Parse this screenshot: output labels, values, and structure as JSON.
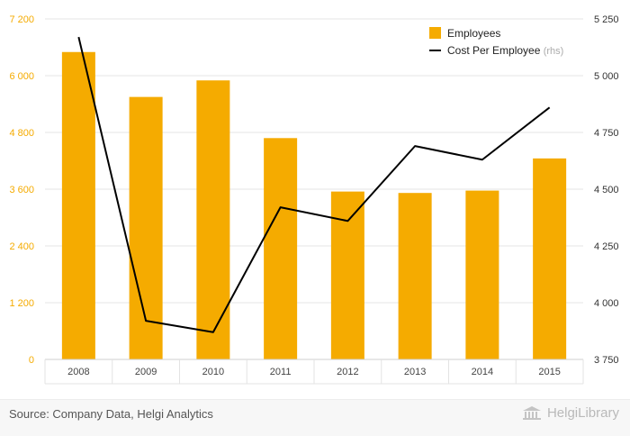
{
  "chart_data": {
    "type": "bar+line",
    "categories": [
      "2008",
      "2009",
      "2010",
      "2011",
      "2012",
      "2013",
      "2014",
      "2015"
    ],
    "series": [
      {
        "name": "Employees",
        "type": "bar",
        "axis": "left",
        "color": "#f5ab00",
        "values": [
          6500,
          5550,
          5900,
          4680,
          3550,
          3520,
          3570,
          4250
        ]
      },
      {
        "name": "Cost Per Employee",
        "name_suffix": "(rhs)",
        "type": "line",
        "axis": "right",
        "color": "#000000",
        "values": [
          5170,
          3920,
          3870,
          4420,
          4360,
          4690,
          4630,
          4860
        ]
      }
    ],
    "left_axis": {
      "ticks": [
        0,
        1200,
        2400,
        3600,
        4800,
        6000,
        7200
      ],
      "tick_labels": [
        "0",
        "1 200",
        "2 400",
        "3 600",
        "4 800",
        "6 000",
        "7 200"
      ],
      "ylim": [
        0,
        7200
      ]
    },
    "right_axis": {
      "ticks": [
        3750,
        4000,
        4250,
        4500,
        4750,
        5000,
        5250
      ],
      "tick_labels": [
        "3 750",
        "4 000",
        "4 250",
        "4 500",
        "4 750",
        "5 000",
        "5 250"
      ],
      "ylim": [
        3750,
        5250
      ]
    },
    "grid": true,
    "legend_position": "top-right"
  },
  "footer": {
    "source": "Source: Company Data, Helgi Analytics",
    "logo_text": "HelgiLibrary"
  }
}
